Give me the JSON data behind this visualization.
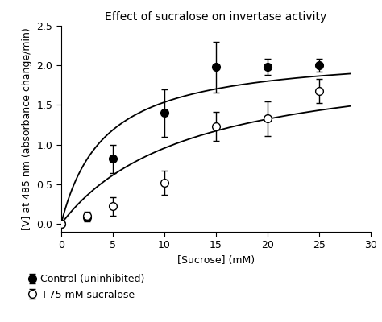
{
  "title": "Effect of sucralose on invertase activity",
  "xlabel": "[Sucrose] (mM)",
  "ylabel": "[V] at 485 nm (absorbance change/min)",
  "xlim": [
    0,
    28
  ],
  "ylim": [
    -0.1,
    2.5
  ],
  "xticks": [
    0,
    5,
    10,
    15,
    20,
    25,
    30
  ],
  "yticks": [
    0.0,
    0.5,
    1.0,
    1.5,
    2.0,
    2.5
  ],
  "control_x": [
    0,
    2.5,
    5,
    10,
    15,
    20,
    25
  ],
  "control_y": [
    0.0,
    0.08,
    0.82,
    1.4,
    1.98,
    1.98,
    2.0
  ],
  "control_yerr": [
    0.02,
    0.05,
    0.18,
    0.3,
    0.32,
    0.1,
    0.08
  ],
  "sucralose_x": [
    0,
    2.5,
    5,
    10,
    15,
    20,
    25
  ],
  "sucralose_y": [
    0.0,
    0.1,
    0.22,
    0.52,
    1.23,
    1.33,
    1.68
  ],
  "sucralose_yerr": [
    0.02,
    0.05,
    0.12,
    0.15,
    0.18,
    0.22,
    0.15
  ],
  "control_label": "Control (uninhibited)",
  "sucralose_label": "+75 mM sucralose",
  "control_Vmax": 2.18,
  "control_Km": 4.2,
  "sucralose_Vmax": 2.15,
  "sucralose_Km": 12.5,
  "background_color": "#ffffff",
  "line_color": "#000000",
  "marker_size": 7,
  "fontsize_title": 10,
  "fontsize_labels": 9,
  "fontsize_ticks": 9,
  "fontsize_legend": 9
}
